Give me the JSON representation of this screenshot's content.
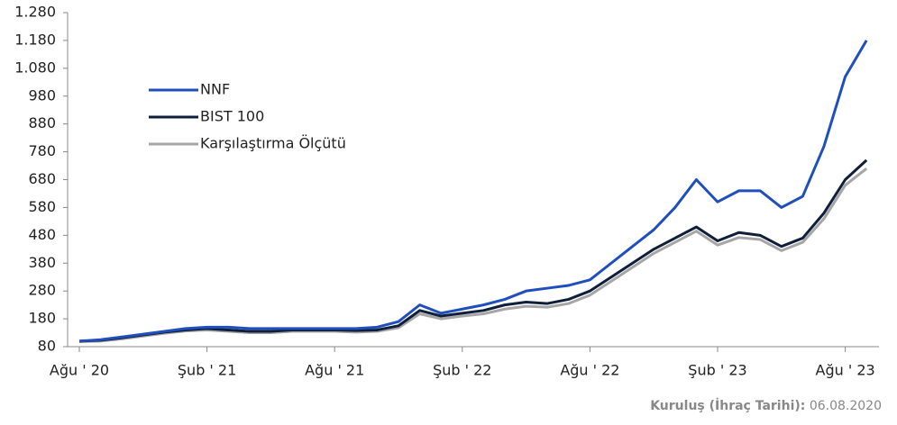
{
  "chart_data": {
    "type": "line",
    "categories": [
      "Ağu ' 20",
      null,
      null,
      null,
      null,
      null,
      "Şub ' 21",
      null,
      null,
      null,
      null,
      null,
      "Ağu ' 21",
      null,
      null,
      null,
      null,
      null,
      "Şub ' 22",
      null,
      null,
      null,
      null,
      null,
      "Ağu ' 22",
      null,
      null,
      null,
      null,
      null,
      "Şub ' 23",
      null,
      null,
      null,
      null,
      null,
      "Ağu ' 23",
      null
    ],
    "series": [
      {
        "name": "NNF",
        "color": "#1f4fbf",
        "values": [
          100,
          105,
          115,
          125,
          135,
          145,
          150,
          150,
          145,
          145,
          145,
          145,
          145,
          145,
          150,
          170,
          230,
          200,
          215,
          230,
          250,
          280,
          290,
          300,
          320,
          380,
          440,
          500,
          580,
          680,
          600,
          640,
          640,
          580,
          620,
          800,
          1050,
          1180
        ]
      },
      {
        "name": "BIST 100",
        "color": "#0f1f3a",
        "values": [
          100,
          103,
          112,
          122,
          132,
          140,
          145,
          140,
          135,
          135,
          140,
          140,
          140,
          138,
          140,
          155,
          210,
          190,
          200,
          210,
          230,
          240,
          235,
          250,
          280,
          330,
          380,
          430,
          470,
          510,
          460,
          490,
          480,
          440,
          470,
          560,
          680,
          750
        ]
      },
      {
        "name": "Karşılaştırma Ölçütü",
        "color": "#a6a6a6",
        "values": [
          98,
          100,
          108,
          118,
          128,
          136,
          140,
          135,
          130,
          130,
          135,
          135,
          135,
          132,
          135,
          148,
          198,
          180,
          190,
          198,
          215,
          225,
          222,
          235,
          265,
          315,
          365,
          415,
          455,
          495,
          445,
          472,
          465,
          425,
          455,
          540,
          660,
          720
        ]
      }
    ],
    "ylim": [
      80,
      1280
    ],
    "yticks": [
      80,
      180,
      280,
      380,
      480,
      580,
      680,
      780,
      880,
      980,
      {
        "value": 1080,
        "label": "1.080"
      },
      {
        "value": 1180,
        "label": "1.180"
      },
      {
        "value": 1280,
        "label": "1.280"
      }
    ],
    "footnote_label": "Kuruluş (İhraç Tarihi):",
    "footnote_value": "06.08.2020"
  }
}
